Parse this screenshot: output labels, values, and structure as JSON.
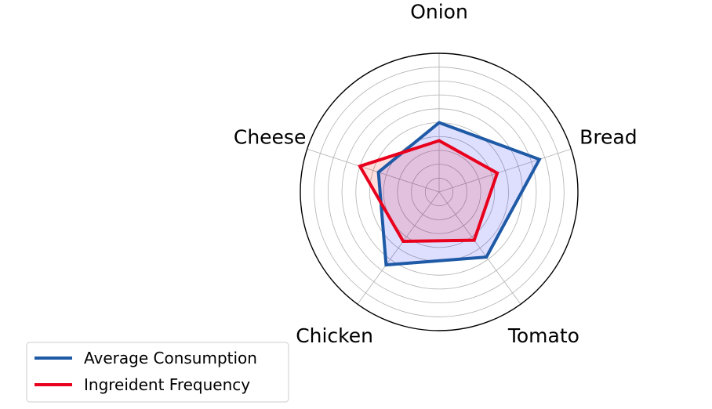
{
  "chart_data": {
    "type": "radar",
    "title": "",
    "categories": [
      "Onion",
      "Bread",
      "Tomato",
      "Chicken",
      "Cheese"
    ],
    "rlim": [
      0,
      10
    ],
    "r_grid": [
      1,
      2,
      3,
      4,
      5,
      6,
      7,
      8,
      9,
      10
    ],
    "grid": true,
    "legend_position": "lower left",
    "series": [
      {
        "name": "Average Consumption",
        "values": [
          5.0,
          7.6,
          5.8,
          6.5,
          4.6
        ],
        "line_color": "#1f5aa6",
        "fill_color": "#0000ff",
        "fill_opacity": 0.13
      },
      {
        "name": "Ingreident Frequency",
        "values": [
          3.7,
          4.4,
          4.3,
          4.4,
          6.0
        ],
        "line_color": "#e8001c",
        "fill_color": "#ff0000",
        "fill_opacity": 0.13
      }
    ]
  }
}
